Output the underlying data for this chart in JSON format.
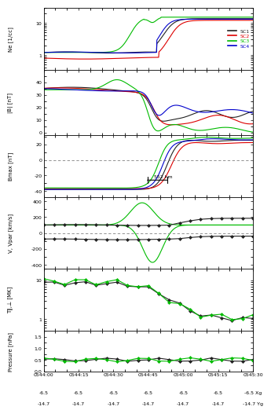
{
  "time_labels": [
    "0544:00",
    "0544:15",
    "0544:30",
    "0544:45",
    "0545:00",
    "0545:15",
    "0545:30"
  ],
  "xg_labels": [
    "-6.5",
    "-6.5",
    "-6.5",
    "-6.5",
    "-6.5",
    "-6.5",
    "-6.5 Xg"
  ],
  "yg_labels": [
    "-14.7",
    "-14.7",
    "-14.7",
    "-14.7",
    "-14.7",
    "-14.7",
    "-14.7 Yg"
  ],
  "colors": {
    "SC1": "#222222",
    "SC2": "#dd0000",
    "SC3": "#00bb00",
    "SC4": "#0000cc"
  },
  "background": "#ffffff",
  "ne_ylabel": "Ne [1/cc]",
  "b_ylabel": "|B| [nT]",
  "bmax_ylabel": "Bmax [nT]",
  "v_ylabel": "V, Vpar [km/s]",
  "t_ylabel": "T∥,⊥ [MK]",
  "p_ylabel": "Pressure [nPa]",
  "height_ratios": [
    1.0,
    1.05,
    1.0,
    1.15,
    1.0,
    0.65
  ],
  "lw": 0.8,
  "marker_size": 2.5,
  "legend_labels": [
    "SC1",
    "SC2",
    "SC3",
    "SC4"
  ]
}
